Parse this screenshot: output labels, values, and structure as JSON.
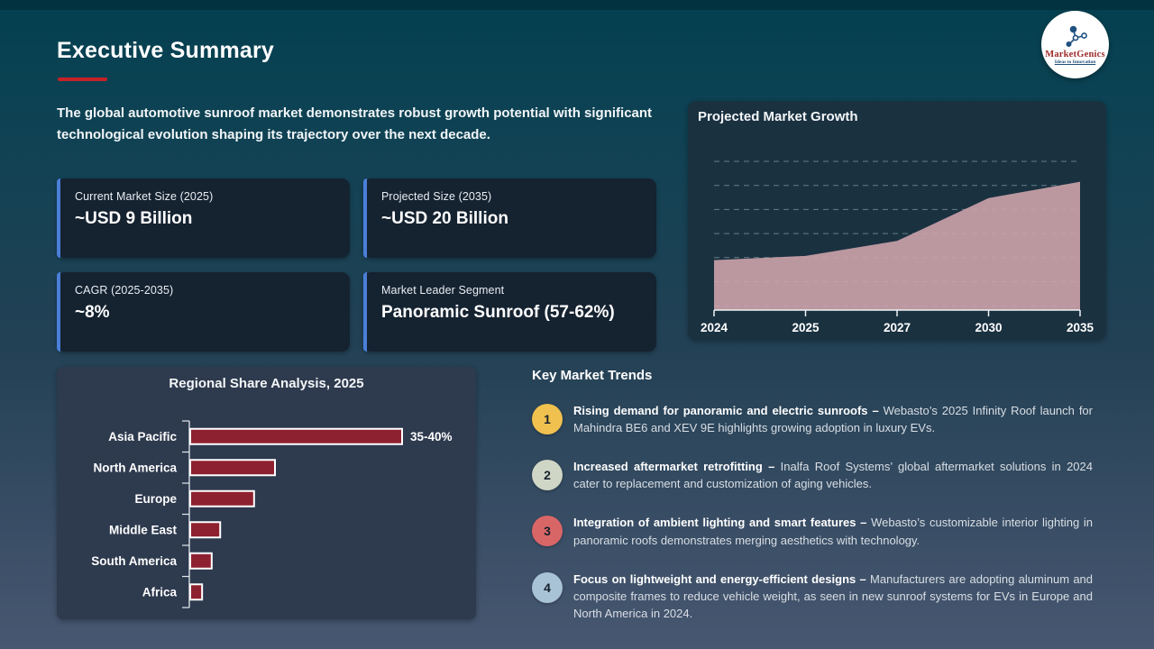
{
  "slide": {
    "title": "Executive Summary",
    "intro": "The global automotive sunroof market demonstrates robust growth potential with significant technological evolution shaping its trajectory over the next decade.",
    "accent_red": "#c52127",
    "accent_blue": "#4a7fd9"
  },
  "logo": {
    "name": "MarketGenics",
    "tagline": "Ideas to Innovation"
  },
  "stats": [
    {
      "label": "Current Market Size (2025)",
      "value": "~USD 9 Billion"
    },
    {
      "label": "Projected Size (2035)",
      "value": "~USD 20 Billion"
    },
    {
      "label": "CAGR (2025-2035)",
      "value": "~8%"
    },
    {
      "label": "Market Leader Segment",
      "value": "Panoramic Sunroof (57-62%)"
    }
  ],
  "trends": {
    "heading": "Key Market Trends",
    "items": [
      {
        "num": "1",
        "color": "#f0c14f",
        "lead": "Rising demand for panoramic and electric sunroofs –",
        "rest": " Webasto’s 2025 Infinity Roof launch for Mahindra BE6 and XEV 9E highlights growing adoption in luxury EVs."
      },
      {
        "num": "2",
        "color": "#cfd6c5",
        "lead": "Increased aftermarket retrofitting –",
        "rest": " Inalfa Roof Systems’ global aftermarket solutions in 2024 cater to replacement and customization of aging vehicles."
      },
      {
        "num": "3",
        "color": "#d96667",
        "lead": "Integration of ambient lighting and smart features –",
        "rest": " Webasto’s customizable interior lighting in panoramic roofs demonstrates merging aesthetics with technology."
      },
      {
        "num": "4",
        "color": "#a9c3d6",
        "lead": "Focus on lightweight and energy-efficient designs –",
        "rest": " Manufacturers are adopting aluminum and composite frames to reduce vehicle weight, as seen in new sunroof systems for EVs in Europe and North America in 2024."
      }
    ]
  },
  "chart_data": [
    {
      "type": "area",
      "title": "Projected Market Growth",
      "x": [
        "2024",
        "2025",
        "2027",
        "2030",
        "2035"
      ],
      "values": [
        9,
        9.6,
        11.7,
        17.7,
        20
      ],
      "unit": "USD Billion (approx, est. from axis)",
      "ylim": [
        2,
        24
      ],
      "grid": "dashed horizontal, no y tick labels",
      "legend": "none",
      "area_color": "#cda3ab"
    },
    {
      "type": "bar",
      "title": "Regional Share Analysis, 2025",
      "orientation": "horizontal",
      "categories": [
        "Asia Pacific",
        "North America",
        "Europe",
        "Middle East",
        "South America",
        "Africa"
      ],
      "values": [
        37.5,
        15,
        11.3,
        5.3,
        3.8,
        2.1
      ],
      "value_label": {
        "category": "Asia Pacific",
        "text": "35-40%"
      },
      "xlabel": "",
      "ylabel": "",
      "xlim": [
        0,
        42
      ],
      "legend": "none",
      "bar_color": "#8e2130",
      "bar_border": "#ffffff"
    }
  ]
}
